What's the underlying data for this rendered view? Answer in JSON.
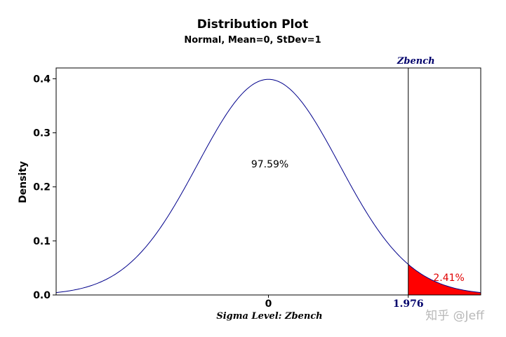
{
  "chart_data": {
    "type": "area",
    "title": "Distribution Plot",
    "subtitle": "Normal, Mean=0, StDev=1",
    "distribution": {
      "family": "Normal",
      "mean": 0,
      "stdev": 1
    },
    "xlabel": "Sigma Level: Zbench",
    "ylabel": "Density",
    "xlim": [
      -3.0,
      3.0
    ],
    "ylim": [
      0,
      0.42
    ],
    "y_ticks": [
      "0.0",
      "0.1",
      "0.2",
      "0.3",
      "0.4"
    ],
    "x_ticks": [
      "0",
      "1.976"
    ],
    "reference_line": {
      "x": 1.976,
      "label": "Zbench"
    },
    "areas": [
      {
        "label": "97.59%",
        "from": -3.0,
        "to": 1.976,
        "color": "#ffffff"
      },
      {
        "label": "2.41%",
        "from": 1.976,
        "to": 3.0,
        "color": "#ff0000"
      }
    ],
    "curve_color": "#00008b",
    "grid": false
  },
  "watermark": "知乎 @Jeff"
}
